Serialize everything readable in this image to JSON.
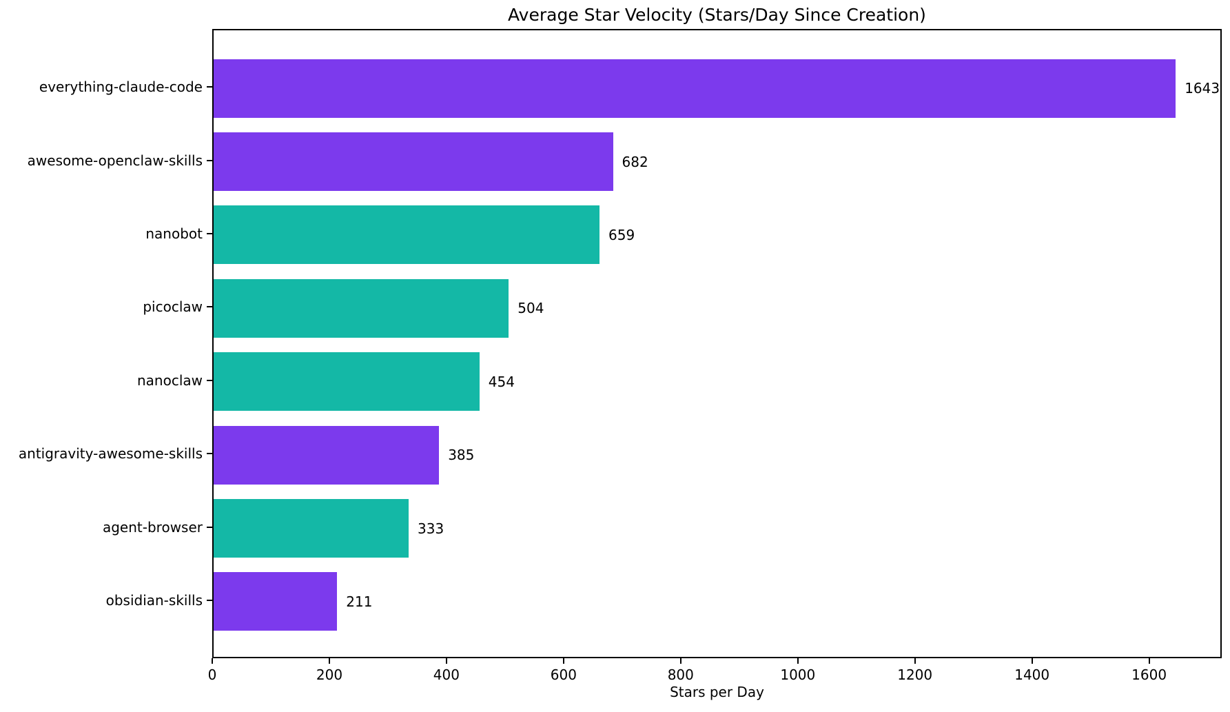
{
  "chart_data": {
    "type": "bar",
    "orientation": "horizontal",
    "title": "Average Star Velocity (Stars/Day Since Creation)",
    "xlabel": "Stars per Day",
    "ylabel": "",
    "categories": [
      "everything-claude-code",
      "awesome-openclaw-skills",
      "nanobot",
      "picoclaw",
      "nanoclaw",
      "antigravity-awesome-skills",
      "agent-browser",
      "obsidian-skills"
    ],
    "values": [
      1643,
      682,
      659,
      504,
      454,
      385,
      333,
      211
    ],
    "value_labels": [
      "1643",
      "682",
      "659",
      "504",
      "454",
      "385",
      "333",
      "211"
    ],
    "bar_colors": [
      "#7C3AED",
      "#7C3AED",
      "#14B8A6",
      "#14B8A6",
      "#14B8A6",
      "#7C3AED",
      "#14B8A6",
      "#7C3AED"
    ],
    "xticks": [
      0,
      200,
      400,
      600,
      800,
      1000,
      1200,
      1400,
      1600
    ],
    "xtick_labels": [
      "0",
      "200",
      "400",
      "600",
      "800",
      "1000",
      "1200",
      "1400",
      "1600"
    ],
    "xlim": [
      0,
      1724
    ],
    "grid": false,
    "legend": null,
    "colors": {
      "purple": "#7C3AED",
      "teal": "#14B8A6",
      "axis": "#000000",
      "text": "#000000",
      "background": "#ffffff"
    }
  }
}
